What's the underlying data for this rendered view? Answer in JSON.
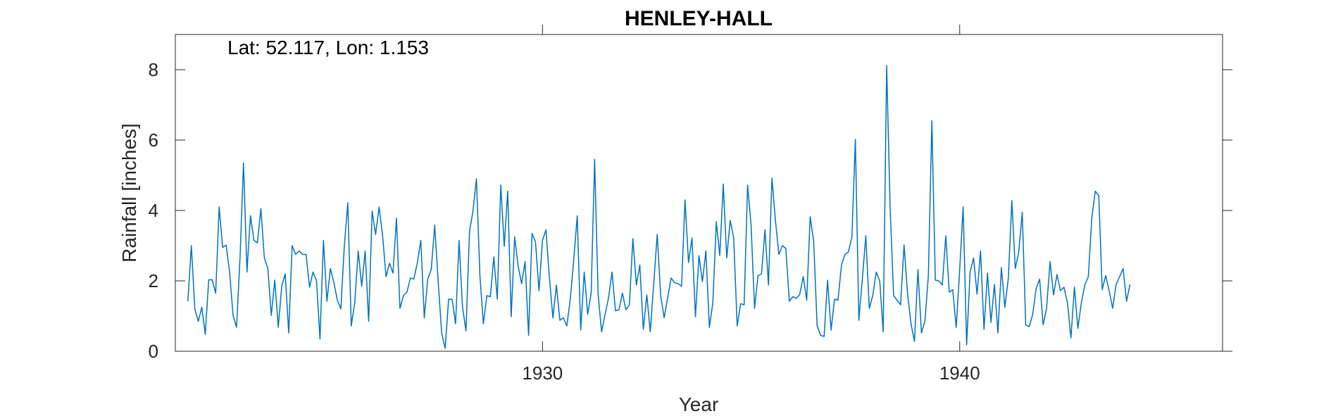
{
  "chart_data": {
    "type": "line",
    "title": "HENLEY-HALL",
    "annotation": "Lat: 52.117, Lon: 1.153",
    "xlabel": "Year",
    "ylabel": "Rainfall [inches]",
    "xlim": [
      1921.2,
      1946.3
    ],
    "ylim": [
      0,
      9
    ],
    "xticks": [
      1930,
      1940
    ],
    "yticks": [
      0,
      2,
      4,
      6,
      8
    ],
    "x_start": 1921.5,
    "x_step": 0.08333,
    "grid": false,
    "line_color": "#0072BD",
    "series": [
      {
        "values": [
          1.42,
          3.0,
          1.2,
          0.85,
          1.25,
          0.48,
          2.03,
          2.03,
          1.65,
          4.1,
          2.95,
          3.02,
          2.25,
          1.02,
          0.68,
          2.65,
          5.35,
          2.25,
          3.85,
          3.15,
          3.08,
          4.05,
          2.65,
          2.35,
          1.02,
          2.02,
          0.68,
          1.85,
          2.2,
          0.52,
          3.0,
          2.75,
          2.85,
          2.75,
          2.75,
          1.82,
          2.25,
          2.0,
          0.35,
          3.15,
          1.42,
          2.35,
          1.95,
          1.45,
          1.2,
          3.0,
          4.22,
          0.72,
          1.38,
          2.85,
          1.85,
          2.85,
          0.85,
          3.98,
          3.32,
          4.1,
          3.3,
          2.12,
          2.5,
          2.22,
          3.78,
          1.22,
          1.58,
          1.68,
          2.08,
          2.05,
          2.52,
          3.15,
          0.95,
          2.05,
          2.32,
          3.58,
          1.98,
          0.52,
          0.08,
          1.48,
          1.48,
          0.78,
          3.15,
          1.25,
          0.58,
          3.4,
          3.98,
          4.9,
          2.15,
          0.78,
          1.58,
          1.55,
          2.68,
          1.48,
          4.72,
          2.98,
          4.55,
          0.98,
          3.25,
          2.42,
          1.92,
          2.55,
          0.45,
          3.35,
          3.1,
          1.72,
          3.15,
          3.45,
          2.08,
          0.95,
          1.88,
          0.88,
          0.95,
          0.72,
          1.48,
          2.62,
          3.85,
          0.6,
          2.25,
          1.05,
          1.65,
          5.45,
          1.62,
          0.55,
          1.05,
          1.52,
          2.25,
          1.15,
          1.18,
          1.65,
          1.18,
          1.32,
          3.2,
          1.88,
          2.45,
          0.62,
          1.6,
          0.55,
          1.92,
          3.32,
          1.58,
          0.95,
          1.52,
          2.08,
          1.95,
          1.92,
          1.85,
          4.3,
          2.52,
          3.22,
          0.98,
          2.72,
          1.98,
          2.85,
          0.68,
          1.38,
          3.68,
          2.72,
          4.75,
          2.65,
          3.72,
          3.22,
          0.72,
          1.35,
          1.32,
          4.72,
          3.58,
          1.22,
          2.15,
          2.2,
          3.45,
          1.88,
          4.92,
          3.72,
          2.75,
          3.0,
          2.92,
          1.42,
          1.55,
          1.5,
          1.62,
          2.12,
          1.45,
          3.82,
          3.12,
          0.72,
          0.45,
          0.42,
          2.02,
          0.6,
          1.48,
          1.45,
          2.45,
          2.75,
          2.82,
          3.25,
          6.02,
          0.88,
          2.05,
          3.28,
          1.22,
          1.58,
          2.25,
          2.0,
          0.55,
          8.12,
          4.05,
          1.58,
          1.45,
          1.32,
          3.02,
          1.65,
          0.78,
          0.28,
          2.32,
          0.52,
          0.85,
          2.15,
          6.55,
          2.02,
          2.0,
          1.88,
          3.28,
          1.68,
          1.75,
          0.68,
          2.32,
          4.1,
          0.18,
          2.25,
          2.65,
          1.62,
          2.85,
          0.62,
          2.22,
          0.82,
          1.9,
          0.52,
          2.38,
          1.25,
          2.08,
          4.28,
          2.35,
          2.82,
          3.95,
          0.75,
          0.7,
          1.05,
          1.78,
          2.05,
          0.75,
          1.22,
          2.55,
          1.6,
          2.18,
          1.72,
          1.82,
          1.38,
          0.38,
          1.82,
          0.65,
          1.38,
          1.88,
          2.12,
          3.78,
          4.55,
          4.42,
          1.75,
          2.15,
          1.72,
          1.22,
          1.9,
          2.12,
          2.35,
          1.42,
          1.9
        ]
      }
    ]
  }
}
